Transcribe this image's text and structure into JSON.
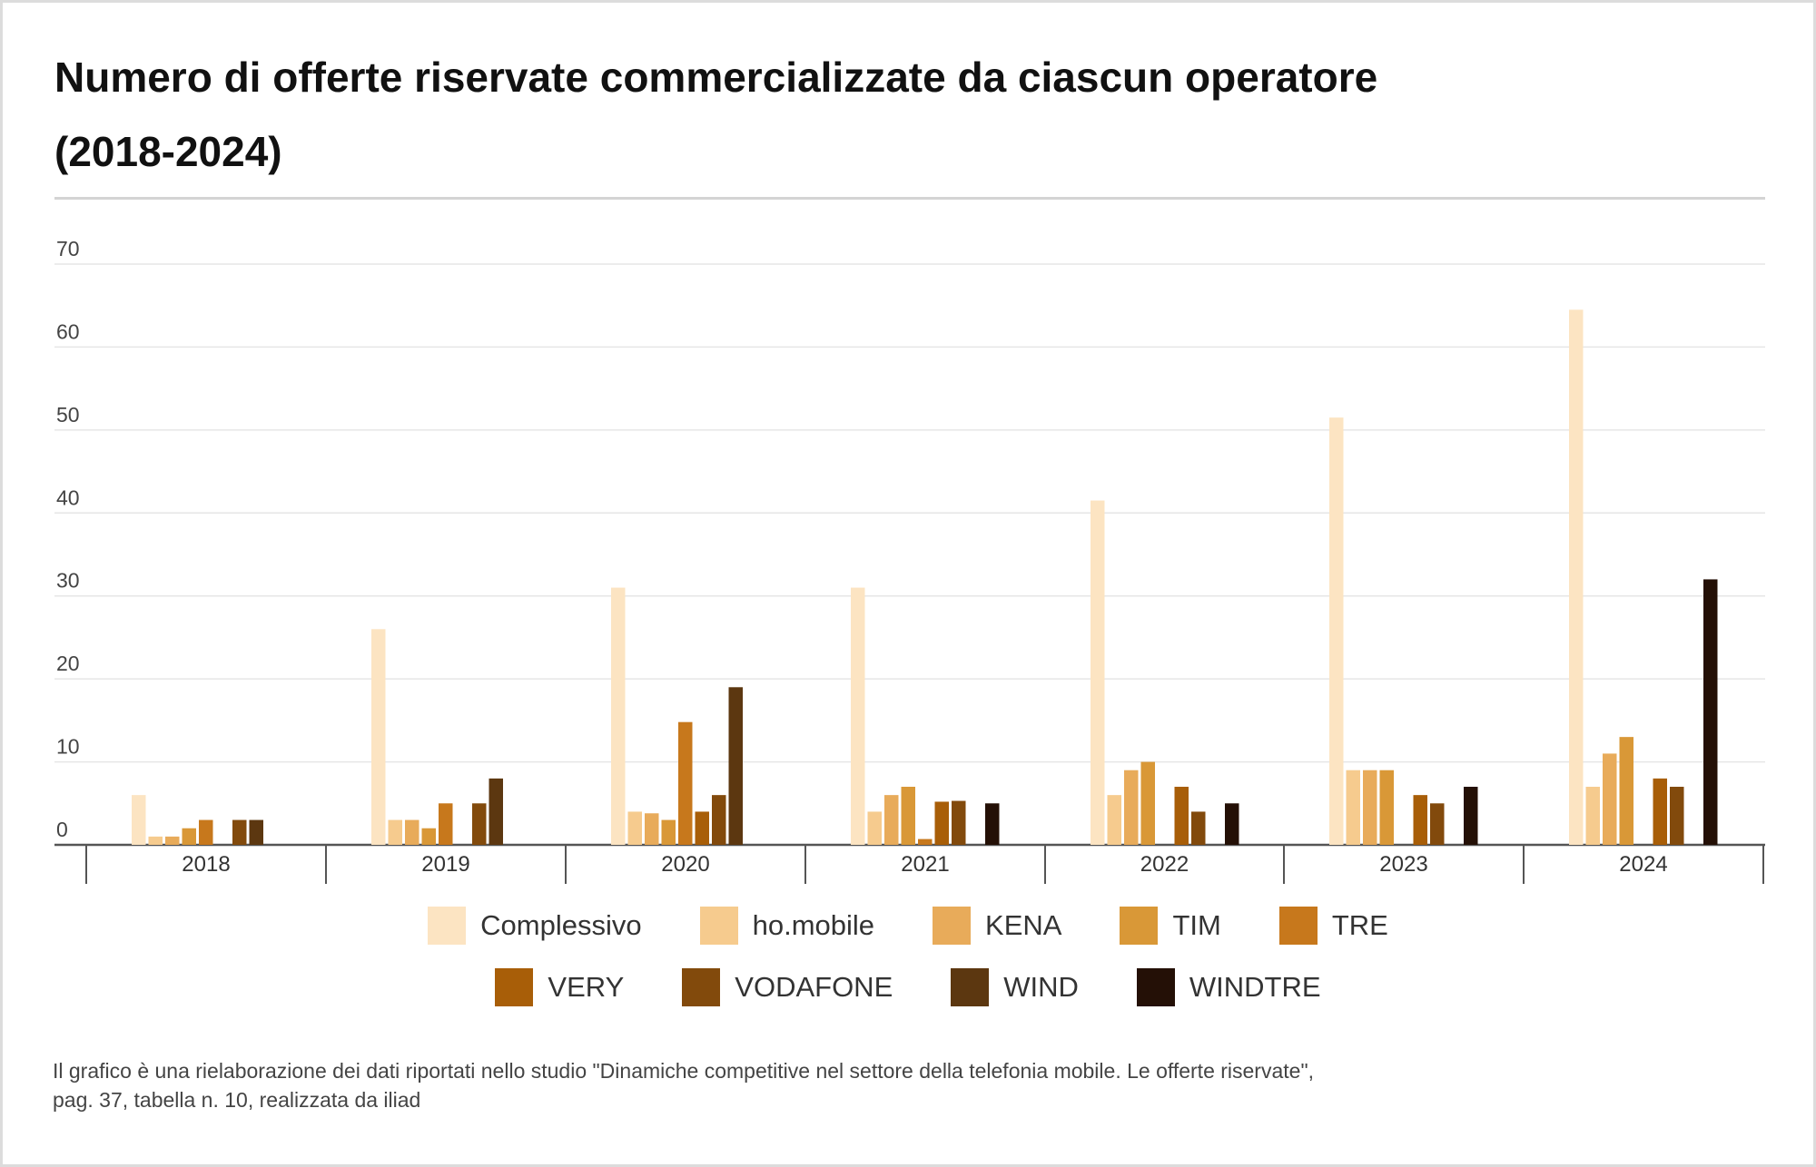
{
  "title_line1": "Numero di offerte riservate commercializzate da ciascun operatore",
  "title_line2": "(2018-2024)",
  "footnote_line1": "Il grafico è una rielaborazione dei dati riportati nello studio \"Dinamiche competitive nel settore della telefonia mobile. Le offerte riservate\",",
  "footnote_line2": "pag. 37, tabella n. 10, realizzata da iliad",
  "chart_data": {
    "type": "bar",
    "title": "Numero di offerte riservate commercializzate da ciascun operatore (2018-2024)",
    "xlabel": "",
    "ylabel": "",
    "ylim": [
      0,
      70
    ],
    "yticks": [
      0,
      10,
      20,
      30,
      40,
      50,
      60,
      70
    ],
    "grid": true,
    "legend_position": "bottom",
    "categories": [
      "2018",
      "2019",
      "2020",
      "2021",
      "2022",
      "2023",
      "2024"
    ],
    "series": [
      {
        "name": "Complessivo",
        "color": "#fce4c2",
        "values": [
          6,
          26,
          31,
          31,
          41.5,
          51.5,
          64.5
        ]
      },
      {
        "name": "ho.mobile",
        "color": "#f6cb8e",
        "values": [
          1,
          3,
          4,
          4,
          6,
          9,
          7
        ]
      },
      {
        "name": "KENA",
        "color": "#e8ab5a",
        "values": [
          1,
          3,
          3.8,
          6,
          9,
          9,
          11
        ]
      },
      {
        "name": "TIM",
        "color": "#d99837",
        "values": [
          2,
          2,
          3,
          7,
          10,
          9,
          13
        ]
      },
      {
        "name": "TRE",
        "color": "#c7781c",
        "values": [
          3,
          5,
          14.8,
          0.7,
          null,
          null,
          null
        ]
      },
      {
        "name": "VERY",
        "color": "#a85e08",
        "values": [
          null,
          null,
          4,
          5.2,
          7,
          6,
          8
        ]
      },
      {
        "name": "VODAFONE",
        "color": "#824a0c",
        "values": [
          3,
          5,
          6,
          5.3,
          4,
          5,
          7
        ]
      },
      {
        "name": "WIND",
        "color": "#5c3710",
        "values": [
          3,
          8,
          19,
          null,
          null,
          null,
          null
        ]
      },
      {
        "name": "WINDTRE",
        "color": "#241006",
        "values": [
          null,
          null,
          null,
          5,
          5,
          7,
          32
        ]
      }
    ]
  }
}
